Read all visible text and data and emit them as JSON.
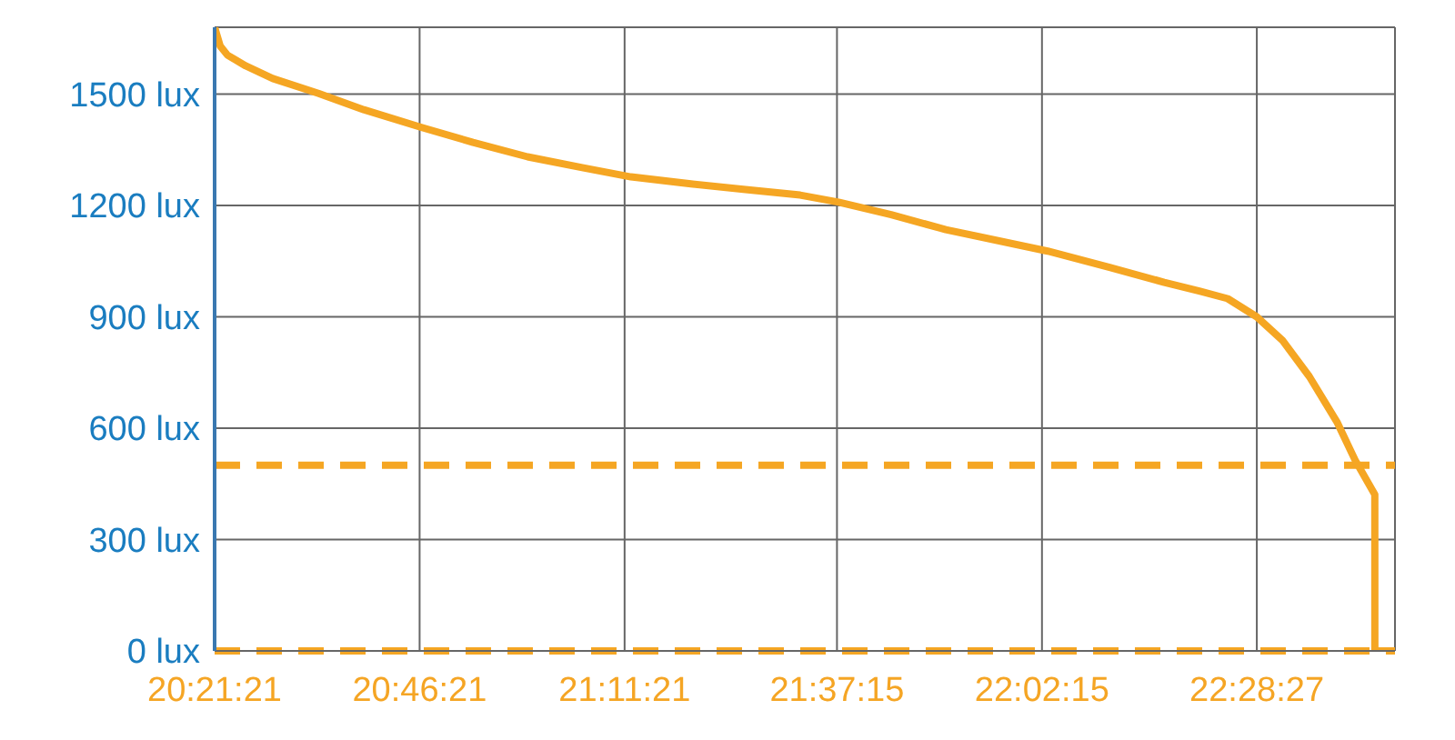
{
  "chart_data": {
    "type": "line",
    "x": [
      20.355833,
      20.367,
      20.382,
      20.419,
      20.474,
      20.567,
      20.659,
      20.777,
      20.881,
      20.992,
      21.103,
      21.202,
      21.324,
      21.435,
      21.546,
      21.624,
      21.731,
      21.842,
      22.049,
      22.175,
      22.286,
      22.359,
      22.415,
      22.474,
      22.526,
      22.581,
      22.637,
      22.674,
      22.714,
      22.7141,
      22.755
    ],
    "series": [
      {
        "color": "#f5a623",
        "values": [
          1680,
          1630,
          1605,
          1576,
          1542,
          1502,
          1458,
          1410,
          1370,
          1331,
          1302,
          1277,
          1258,
          1243,
          1228,
          1209,
          1175,
          1135,
          1077,
          1033,
          993,
          969,
          949,
          900,
          837,
          739,
          617,
          514,
          421,
          0,
          0
        ]
      }
    ],
    "xlim": [
      20.355833,
      22.755
    ],
    "xticks": [
      {
        "value": 20.355833,
        "label": "20:21:21"
      },
      {
        "value": 20.7725,
        "label": "20:46:21"
      },
      {
        "value": 21.189167,
        "label": "21:11:21"
      },
      {
        "value": 21.620833,
        "label": "21:37:15"
      },
      {
        "value": 22.0375,
        "label": "22:02:15"
      },
      {
        "value": 22.474167,
        "label": "22:28:27"
      }
    ],
    "ylim": [
      0,
      1680
    ],
    "yticks": [
      {
        "value": 0,
        "label": "0 lux"
      },
      {
        "value": 300,
        "label": "300 lux"
      },
      {
        "value": 600,
        "label": "600 lux"
      },
      {
        "value": 900,
        "label": "900 lux"
      },
      {
        "value": 1200,
        "label": "1200 lux"
      },
      {
        "value": 1500,
        "label": "1500 lux"
      }
    ],
    "ref_lines": [
      {
        "axis": "y",
        "value": 500,
        "color": "#f5a623",
        "line_style": "dashed"
      },
      {
        "axis": "y",
        "value": 0,
        "color": "#f5a623",
        "line_style": "dashed"
      }
    ],
    "grid": true,
    "marker": "none",
    "line_style": "solid"
  }
}
